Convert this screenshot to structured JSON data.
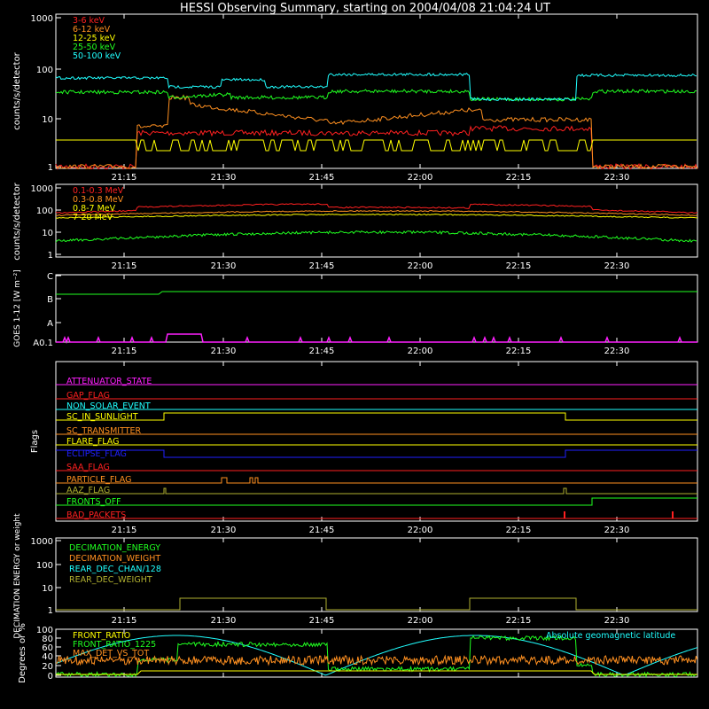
{
  "title": "HESSI Observing Summary, starting on 2004/04/08 21:04:24 UT",
  "time_ticks": [
    "21:15",
    "21:30",
    "21:45",
    "22:00",
    "22:15",
    "22:30"
  ],
  "colors": {
    "bg": "#000000",
    "axis": "#ffffff",
    "red": "#ff2020",
    "orange": "#ff9020",
    "yellow": "#ffff00",
    "green": "#20ff20",
    "cyan": "#20ffff",
    "magenta": "#ff20ff",
    "blue": "#2020ff",
    "olive": "#b0b030"
  },
  "chart_data": [
    {
      "id": "panel1",
      "type": "line",
      "ylabel": "counts/s/detector",
      "yscale": "log",
      "yticks": [
        "1",
        "10",
        "100",
        "1000"
      ],
      "legend": [
        {
          "name": "3-6 keV",
          "color": "#ff2020"
        },
        {
          "name": "6-12 keV",
          "color": "#ff9020"
        },
        {
          "name": "12-25 keV",
          "color": "#ffff00"
        },
        {
          "name": "25-50 keV",
          "color": "#20ff20"
        },
        {
          "name": "50-100 keV",
          "color": "#20ffff"
        }
      ]
    },
    {
      "id": "panel2",
      "type": "line",
      "ylabel": "counts/s/detector",
      "yscale": "log",
      "yticks": [
        "1",
        "10",
        "100",
        "1000"
      ],
      "legend": [
        {
          "name": "0.1-0.3 MeV",
          "color": "#ff2020"
        },
        {
          "name": "0.3-0.8 MeV",
          "color": "#ff9020"
        },
        {
          "name": "0.8-7 MeV",
          "color": "#ffff00"
        },
        {
          "name": "7-20 MeV",
          "color": "#ffff00"
        }
      ]
    },
    {
      "id": "panel3",
      "type": "line",
      "ylabel": "GOES 1-12 [W m⁻²]",
      "yticks": [
        "A0.1",
        "A",
        "B",
        "C"
      ],
      "series": [
        {
          "color": "#20ff20"
        },
        {
          "color": "#ff20ff"
        }
      ]
    },
    {
      "id": "panel4",
      "type": "line",
      "ylabel": "Flags",
      "flags": [
        {
          "name": "ATTENUATOR_STATE",
          "color": "#ff20ff"
        },
        {
          "name": "GAP_FLAG",
          "color": "#ff2020"
        },
        {
          "name": "NON_SOLAR_EVENT",
          "color": "#20ffff"
        },
        {
          "name": "SC_IN_SUNLIGHT",
          "color": "#ffff00"
        },
        {
          "name": "SC_TRANSMITTER",
          "color": "#ff9020"
        },
        {
          "name": "FLARE_FLAG",
          "color": "#ffff00"
        },
        {
          "name": "ECLIPSE_FLAG",
          "color": "#2020ff"
        },
        {
          "name": "SAA_FLAG",
          "color": "#ff2020"
        },
        {
          "name": "PARTICLE_FLAG",
          "color": "#ff9020"
        },
        {
          "name": "AAZ_FLAG",
          "color": "#b0b030"
        },
        {
          "name": "FRONTS_OFF",
          "color": "#20ff20"
        },
        {
          "name": "BAD_PACKETS",
          "color": "#ff2020"
        }
      ]
    },
    {
      "id": "panel5",
      "type": "line",
      "ylabel": "DECIMATION ENERGY or weight",
      "yscale": "log",
      "yticks": [
        "1",
        "10",
        "100",
        "1000"
      ],
      "legend": [
        {
          "name": "DECIMATION_ENERGY",
          "color": "#20ff20"
        },
        {
          "name": "DECIMATION_WEIGHT",
          "color": "#ff9020"
        },
        {
          "name": "REAR_DEC_CHAN/128",
          "color": "#20ffff"
        },
        {
          "name": "REAR_DEC_WEIGHT",
          "color": "#b0b030"
        }
      ]
    },
    {
      "id": "panel6",
      "type": "line",
      "ylabel": "Degrees or %",
      "yticks": [
        "0",
        "20",
        "40",
        "60",
        "80",
        "100"
      ],
      "legend": [
        {
          "name": "FRONT_RATIO",
          "color": "#ffff00"
        },
        {
          "name": "FRONT_RATIO_1225",
          "color": "#20ff20"
        },
        {
          "name": "MAX_DET_VS_TOT",
          "color": "#ff9020"
        }
      ],
      "annotation": {
        "text": "Absolute geomagnetic latitude",
        "color": "#20ffff"
      }
    }
  ]
}
